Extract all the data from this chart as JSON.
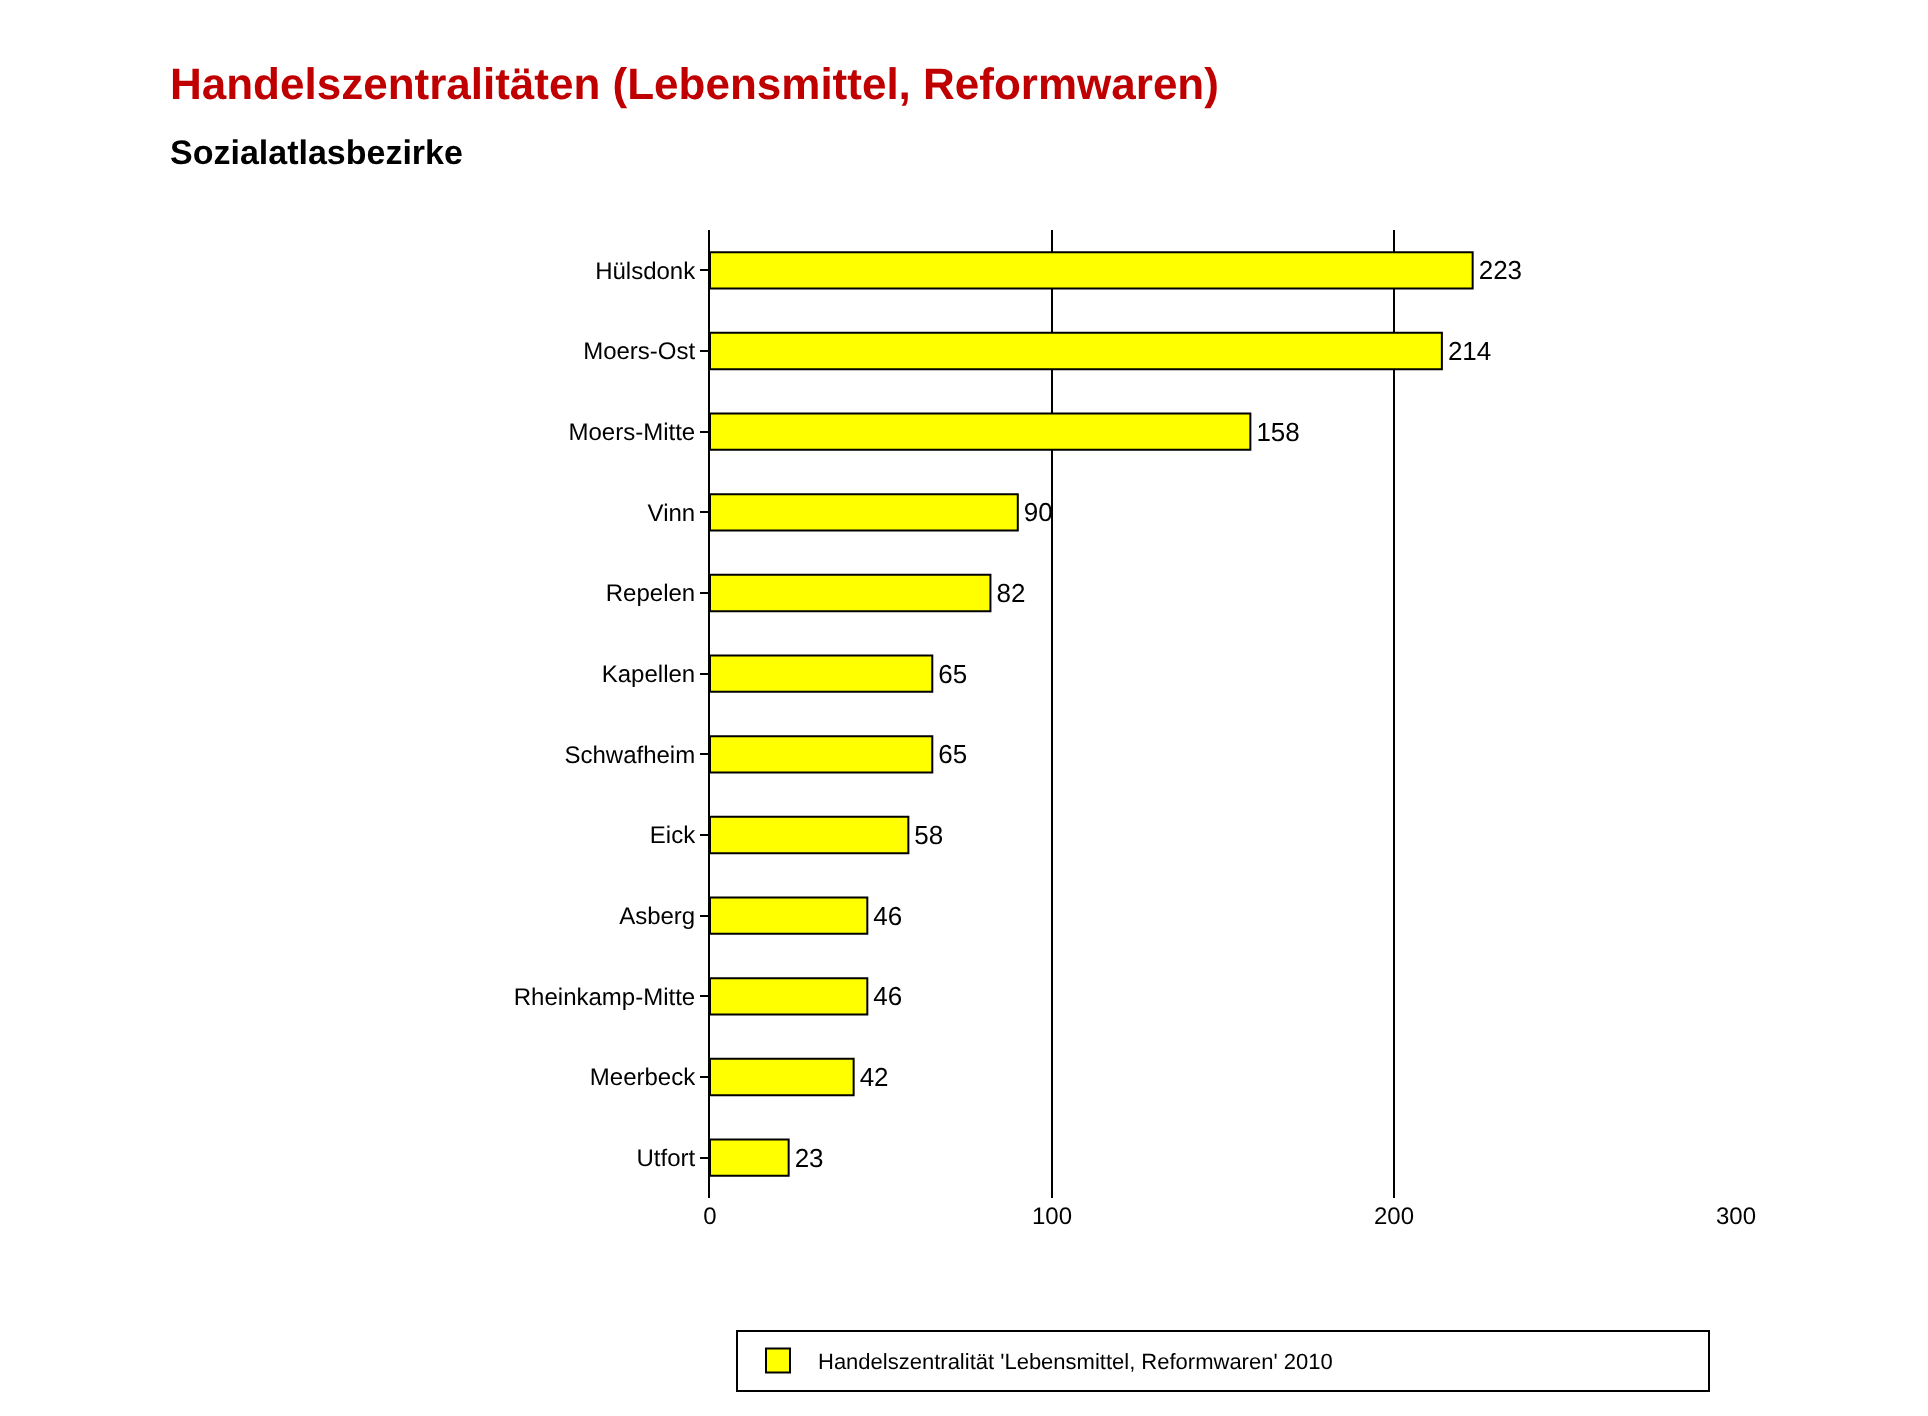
{
  "chart_data": {
    "type": "bar",
    "orientation": "horizontal",
    "title": "Handelszentralitäten (Lebensmittel, Reformwaren)",
    "subtitle": "Sozialatlasbezirke",
    "categories": [
      "Hülsdonk",
      "Moers-Ost",
      "Moers-Mitte",
      "Vinn",
      "Repelen",
      "Kapellen",
      "Schwafheim",
      "Eick",
      "Asberg",
      "Rheinkamp-Mitte",
      "Meerbeck",
      "Utfort"
    ],
    "series": [
      {
        "name": "Handelszentralität 'Lebensmittel, Reformwaren' 2010",
        "color": "#ffff00",
        "values": [
          223,
          214,
          158,
          90,
          82,
          65,
          65,
          58,
          46,
          46,
          42,
          23
        ]
      }
    ],
    "xlim": [
      0,
      300
    ],
    "xticks": [
      0,
      100,
      200,
      300
    ],
    "grid": "x",
    "legend": "bottom",
    "data_labels": true
  }
}
